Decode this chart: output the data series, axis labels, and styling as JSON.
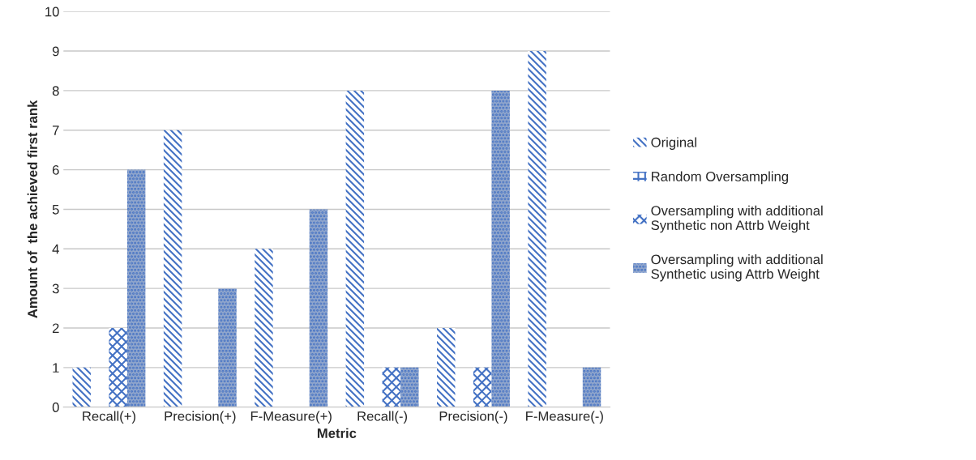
{
  "chart_data": {
    "type": "bar",
    "xlabel": "Metric",
    "ylabel": "Amount of  the achieved first rank",
    "categories": [
      "Recall(+)",
      "Precision(+)",
      "F-Measure(+)",
      "Recall(-)",
      "Precision(-)",
      "F-Measure(-)"
    ],
    "series": [
      {
        "name": "Original",
        "color": "#4472c4",
        "values": [
          1,
          7,
          4,
          8,
          2,
          9
        ]
      },
      {
        "name": "Random Oversampling",
        "color": "#4472c4",
        "values": [
          0,
          0,
          0,
          0,
          0,
          0
        ]
      },
      {
        "name": "Oversampling with additional Synthetic non Attrb Weight",
        "color": "#4472c4",
        "values": [
          2,
          0,
          0,
          1,
          1,
          0
        ]
      },
      {
        "name": "Oversampling with additional Synthetic using Attrb Weight",
        "color": "#8fa5cc",
        "values": [
          6,
          3,
          5,
          1,
          8,
          1
        ]
      }
    ],
    "ylim": [
      0,
      10
    ],
    "yticks": [
      0,
      1,
      2,
      3,
      4,
      5,
      6,
      7,
      8,
      9,
      10
    ],
    "grid": "y",
    "legend": "right"
  }
}
